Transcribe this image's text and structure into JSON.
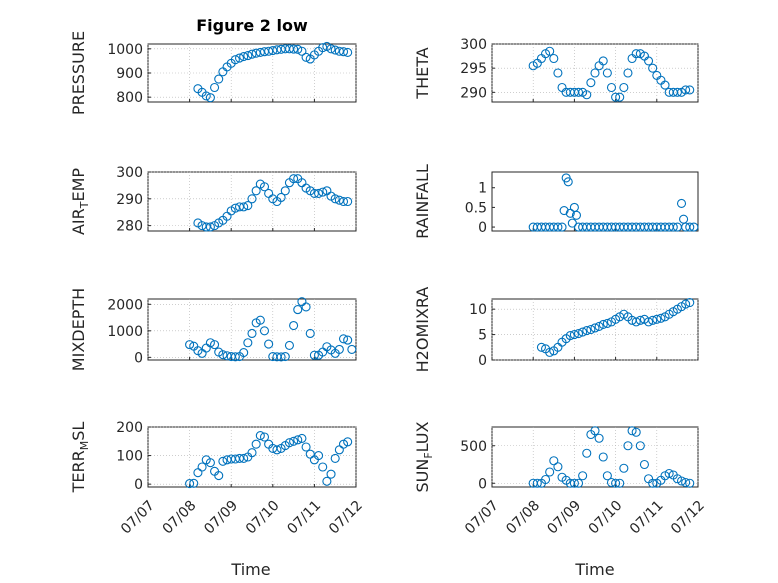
{
  "figure": {
    "title": "Figure 2 low",
    "xlabel_left": "Time",
    "xlabel_right": "Time",
    "x_tick_labels": [
      "07/07",
      "07/08",
      "07/09",
      "07/10",
      "07/11",
      "07/12"
    ],
    "series_color": "#0072bd"
  },
  "chart_data": [
    {
      "type": "scatter",
      "ylabel": "PRESSURE",
      "ylim": [
        780,
        1020
      ],
      "yticks": [
        800,
        900,
        1000
      ],
      "xlim": [
        "07/07",
        "07/12"
      ],
      "grid": true,
      "points": [
        [
          1.2,
          835
        ],
        [
          1.3,
          820
        ],
        [
          1.4,
          805
        ],
        [
          1.5,
          798
        ],
        [
          1.6,
          840
        ],
        [
          1.7,
          875
        ],
        [
          1.8,
          905
        ],
        [
          1.9,
          925
        ],
        [
          2.0,
          940
        ],
        [
          2.1,
          955
        ],
        [
          2.2,
          962
        ],
        [
          2.3,
          968
        ],
        [
          2.4,
          972
        ],
        [
          2.5,
          978
        ],
        [
          2.6,
          982
        ],
        [
          2.7,
          985
        ],
        [
          2.8,
          988
        ],
        [
          2.9,
          990
        ],
        [
          3.0,
          993
        ],
        [
          3.1,
          996
        ],
        [
          3.2,
          998
        ],
        [
          3.3,
          1000
        ],
        [
          3.4,
          1000
        ],
        [
          3.5,
          999
        ],
        [
          3.6,
          998
        ],
        [
          3.7,
          990
        ],
        [
          3.8,
          965
        ],
        [
          3.9,
          958
        ],
        [
          4.0,
          975
        ],
        [
          4.1,
          990
        ],
        [
          4.2,
          1005
        ],
        [
          4.3,
          1010
        ],
        [
          4.4,
          1000
        ],
        [
          4.5,
          995
        ],
        [
          4.6,
          990
        ],
        [
          4.7,
          988
        ],
        [
          4.8,
          985
        ]
      ]
    },
    {
      "type": "scatter",
      "ylabel": "THETA",
      "ylim": [
        288,
        300
      ],
      "yticks": [
        290,
        295,
        300
      ],
      "xlim": [
        "07/07",
        "07/12"
      ],
      "grid": true,
      "points": [
        [
          1.0,
          295.5
        ],
        [
          1.1,
          296
        ],
        [
          1.2,
          297
        ],
        [
          1.3,
          298
        ],
        [
          1.4,
          298.5
        ],
        [
          1.5,
          297
        ],
        [
          1.6,
          294
        ],
        [
          1.7,
          291
        ],
        [
          1.8,
          290
        ],
        [
          1.9,
          290
        ],
        [
          2.0,
          290
        ],
        [
          2.1,
          290
        ],
        [
          2.2,
          290
        ],
        [
          2.3,
          289.5
        ],
        [
          2.4,
          292
        ],
        [
          2.5,
          294
        ],
        [
          2.6,
          295.5
        ],
        [
          2.7,
          296.5
        ],
        [
          2.8,
          294
        ],
        [
          2.9,
          291
        ],
        [
          3.0,
          289
        ],
        [
          3.1,
          289
        ],
        [
          3.2,
          291
        ],
        [
          3.3,
          294
        ],
        [
          3.4,
          297
        ],
        [
          3.5,
          298
        ],
        [
          3.6,
          298
        ],
        [
          3.7,
          297.5
        ],
        [
          3.8,
          296.5
        ],
        [
          3.9,
          295
        ],
        [
          4.0,
          293.5
        ],
        [
          4.1,
          292.5
        ],
        [
          4.2,
          291.5
        ],
        [
          4.3,
          290
        ],
        [
          4.4,
          290
        ],
        [
          4.5,
          290
        ],
        [
          4.6,
          290
        ],
        [
          4.7,
          290.5
        ],
        [
          4.8,
          290.5
        ]
      ]
    },
    {
      "type": "scatter",
      "ylabel": "AIR",
      "ylabel_sub": "T",
      "ylabel_rest": "EMP",
      "ylim": [
        278,
        300
      ],
      "yticks": [
        280,
        290,
        300
      ],
      "xlim": [
        "07/07",
        "07/12"
      ],
      "grid": true,
      "points": [
        [
          1.2,
          281
        ],
        [
          1.3,
          280
        ],
        [
          1.4,
          279.5
        ],
        [
          1.5,
          279.5
        ],
        [
          1.6,
          280
        ],
        [
          1.7,
          281
        ],
        [
          1.8,
          282
        ],
        [
          1.9,
          283.5
        ],
        [
          2.0,
          285.5
        ],
        [
          2.1,
          286.5
        ],
        [
          2.2,
          287
        ],
        [
          2.3,
          287
        ],
        [
          2.4,
          287.5
        ],
        [
          2.5,
          290
        ],
        [
          2.6,
          293
        ],
        [
          2.7,
          295.5
        ],
        [
          2.8,
          294.5
        ],
        [
          2.9,
          292
        ],
        [
          3.0,
          290
        ],
        [
          3.1,
          289
        ],
        [
          3.2,
          290.5
        ],
        [
          3.3,
          293
        ],
        [
          3.4,
          296
        ],
        [
          3.5,
          297.5
        ],
        [
          3.6,
          297.5
        ],
        [
          3.7,
          296
        ],
        [
          3.8,
          294
        ],
        [
          3.9,
          293
        ],
        [
          4.0,
          292
        ],
        [
          4.1,
          292
        ],
        [
          4.2,
          292.5
        ],
        [
          4.3,
          293
        ],
        [
          4.4,
          291
        ],
        [
          4.5,
          290
        ],
        [
          4.6,
          289.5
        ],
        [
          4.7,
          289
        ],
        [
          4.8,
          289
        ]
      ]
    },
    {
      "type": "scatter",
      "ylabel": "RAINFALL",
      "ylim": [
        -0.1,
        1.4
      ],
      "yticks": [
        0,
        0.5,
        1
      ],
      "ytick_labels": [
        "0",
        "0.5",
        "1"
      ],
      "xlim": [
        "07/07",
        "07/12"
      ],
      "grid": false,
      "points": [
        [
          1.0,
          0
        ],
        [
          1.1,
          0
        ],
        [
          1.2,
          0
        ],
        [
          1.3,
          0
        ],
        [
          1.4,
          0
        ],
        [
          1.5,
          0
        ],
        [
          1.6,
          0
        ],
        [
          1.7,
          0
        ],
        [
          1.75,
          0.42
        ],
        [
          1.8,
          1.25
        ],
        [
          1.85,
          1.15
        ],
        [
          1.9,
          0.35
        ],
        [
          1.95,
          0.1
        ],
        [
          2.0,
          0.5
        ],
        [
          2.05,
          0.3
        ],
        [
          2.1,
          0
        ],
        [
          2.2,
          0
        ],
        [
          2.3,
          0
        ],
        [
          2.4,
          0
        ],
        [
          2.5,
          0
        ],
        [
          2.6,
          0
        ],
        [
          2.7,
          0
        ],
        [
          2.8,
          0
        ],
        [
          2.9,
          0
        ],
        [
          3.0,
          0
        ],
        [
          3.1,
          0
        ],
        [
          3.2,
          0
        ],
        [
          3.3,
          0
        ],
        [
          3.4,
          0
        ],
        [
          3.5,
          0
        ],
        [
          3.6,
          0
        ],
        [
          3.7,
          0
        ],
        [
          3.8,
          0
        ],
        [
          3.9,
          0
        ],
        [
          4.0,
          0
        ],
        [
          4.1,
          0
        ],
        [
          4.2,
          0
        ],
        [
          4.3,
          0
        ],
        [
          4.4,
          0
        ],
        [
          4.5,
          0
        ],
        [
          4.6,
          0.6
        ],
        [
          4.65,
          0.2
        ],
        [
          4.7,
          0
        ],
        [
          4.8,
          0
        ],
        [
          4.9,
          0
        ]
      ]
    },
    {
      "type": "scatter",
      "ylabel": "MIXDEPTH",
      "ylim": [
        -100,
        2200
      ],
      "yticks": [
        0,
        1000,
        2000
      ],
      "xlim": [
        "07/07",
        "07/12"
      ],
      "grid": true,
      "points": [
        [
          1.0,
          480
        ],
        [
          1.1,
          420
        ],
        [
          1.2,
          250
        ],
        [
          1.3,
          150
        ],
        [
          1.4,
          350
        ],
        [
          1.5,
          550
        ],
        [
          1.6,
          480
        ],
        [
          1.7,
          200
        ],
        [
          1.8,
          100
        ],
        [
          1.9,
          60
        ],
        [
          2.0,
          30
        ],
        [
          2.1,
          20
        ],
        [
          2.2,
          30
        ],
        [
          2.3,
          180
        ],
        [
          2.4,
          550
        ],
        [
          2.5,
          900
        ],
        [
          2.6,
          1300
        ],
        [
          2.7,
          1400
        ],
        [
          2.8,
          1000
        ],
        [
          2.9,
          500
        ],
        [
          3.0,
          30
        ],
        [
          3.1,
          20
        ],
        [
          3.2,
          15
        ],
        [
          3.3,
          30
        ],
        [
          3.4,
          450
        ],
        [
          3.5,
          1200
        ],
        [
          3.6,
          1800
        ],
        [
          3.7,
          2100
        ],
        [
          3.8,
          1900
        ],
        [
          3.9,
          900
        ],
        [
          4.0,
          80
        ],
        [
          4.1,
          80
        ],
        [
          4.2,
          200
        ],
        [
          4.3,
          400
        ],
        [
          4.4,
          280
        ],
        [
          4.5,
          150
        ],
        [
          4.6,
          300
        ],
        [
          4.7,
          700
        ],
        [
          4.8,
          650
        ],
        [
          4.9,
          300
        ]
      ]
    },
    {
      "type": "scatter",
      "ylabel": "H2OMIXRA",
      "ylim": [
        0,
        12
      ],
      "yticks": [
        0,
        5,
        10
      ],
      "xlim": [
        "07/07",
        "07/12"
      ],
      "grid": true,
      "points": [
        [
          1.2,
          2.5
        ],
        [
          1.3,
          2.2
        ],
        [
          1.4,
          1.5
        ],
        [
          1.5,
          1.8
        ],
        [
          1.6,
          2.5
        ],
        [
          1.7,
          3.5
        ],
        [
          1.8,
          4.2
        ],
        [
          1.9,
          4.8
        ],
        [
          2.0,
          5.0
        ],
        [
          2.1,
          5.2
        ],
        [
          2.2,
          5.5
        ],
        [
          2.3,
          5.8
        ],
        [
          2.4,
          6.0
        ],
        [
          2.5,
          6.3
        ],
        [
          2.6,
          6.6
        ],
        [
          2.7,
          7.0
        ],
        [
          2.8,
          7.2
        ],
        [
          2.9,
          7.5
        ],
        [
          3.0,
          8.0
        ],
        [
          3.1,
          8.5
        ],
        [
          3.2,
          9.0
        ],
        [
          3.3,
          8.5
        ],
        [
          3.4,
          7.8
        ],
        [
          3.5,
          7.5
        ],
        [
          3.6,
          7.8
        ],
        [
          3.7,
          8.0
        ],
        [
          3.8,
          7.5
        ],
        [
          3.9,
          7.8
        ],
        [
          4.0,
          8.0
        ],
        [
          4.1,
          8.2
        ],
        [
          4.2,
          8.5
        ],
        [
          4.3,
          9.0
        ],
        [
          4.4,
          9.5
        ],
        [
          4.5,
          10.0
        ],
        [
          4.6,
          10.5
        ],
        [
          4.7,
          11.0
        ],
        [
          4.8,
          11.3
        ]
      ]
    },
    {
      "type": "scatter",
      "ylabel": "TERR",
      "ylabel_sub": "M",
      "ylabel_rest": "SL",
      "ylim": [
        -10,
        200
      ],
      "yticks": [
        0,
        100,
        200
      ],
      "xlim": [
        "07/07",
        "07/12"
      ],
      "grid": true,
      "points": [
        [
          1.0,
          2
        ],
        [
          1.1,
          3
        ],
        [
          1.2,
          40
        ],
        [
          1.3,
          60
        ],
        [
          1.4,
          85
        ],
        [
          1.5,
          75
        ],
        [
          1.6,
          45
        ],
        [
          1.7,
          30
        ],
        [
          1.8,
          80
        ],
        [
          1.9,
          85
        ],
        [
          2.0,
          88
        ],
        [
          2.1,
          88
        ],
        [
          2.2,
          90
        ],
        [
          2.3,
          90
        ],
        [
          2.4,
          95
        ],
        [
          2.5,
          110
        ],
        [
          2.6,
          140
        ],
        [
          2.7,
          170
        ],
        [
          2.8,
          165
        ],
        [
          2.9,
          140
        ],
        [
          3.0,
          125
        ],
        [
          3.1,
          120
        ],
        [
          3.2,
          125
        ],
        [
          3.3,
          135
        ],
        [
          3.4,
          145
        ],
        [
          3.5,
          150
        ],
        [
          3.6,
          155
        ],
        [
          3.7,
          160
        ],
        [
          3.8,
          130
        ],
        [
          3.9,
          105
        ],
        [
          4.0,
          85
        ],
        [
          4.1,
          100
        ],
        [
          4.2,
          60
        ],
        [
          4.3,
          10
        ],
        [
          4.4,
          35
        ],
        [
          4.5,
          90
        ],
        [
          4.6,
          120
        ],
        [
          4.7,
          140
        ],
        [
          4.8,
          148
        ]
      ]
    },
    {
      "type": "scatter",
      "ylabel": "SUN",
      "ylabel_sub": "F",
      "ylabel_rest": "LUX",
      "ylim": [
        -50,
        750
      ],
      "yticks": [
        0,
        500
      ],
      "xlim": [
        "07/07",
        "07/12"
      ],
      "grid": true,
      "points": [
        [
          1.0,
          0
        ],
        [
          1.1,
          0
        ],
        [
          1.2,
          0
        ],
        [
          1.3,
          50
        ],
        [
          1.4,
          150
        ],
        [
          1.5,
          300
        ],
        [
          1.6,
          220
        ],
        [
          1.7,
          80
        ],
        [
          1.8,
          40
        ],
        [
          1.9,
          0
        ],
        [
          2.0,
          0
        ],
        [
          2.1,
          0
        ],
        [
          2.2,
          100
        ],
        [
          2.3,
          400
        ],
        [
          2.4,
          650
        ],
        [
          2.5,
          700
        ],
        [
          2.6,
          600
        ],
        [
          2.7,
          350
        ],
        [
          2.8,
          100
        ],
        [
          2.9,
          10
        ],
        [
          3.0,
          0
        ],
        [
          3.1,
          0
        ],
        [
          3.2,
          200
        ],
        [
          3.3,
          500
        ],
        [
          3.4,
          700
        ],
        [
          3.5,
          680
        ],
        [
          3.6,
          500
        ],
        [
          3.7,
          250
        ],
        [
          3.8,
          60
        ],
        [
          3.9,
          0
        ],
        [
          4.0,
          0
        ],
        [
          4.1,
          40
        ],
        [
          4.2,
          100
        ],
        [
          4.3,
          130
        ],
        [
          4.4,
          110
        ],
        [
          4.5,
          60
        ],
        [
          4.6,
          30
        ],
        [
          4.7,
          10
        ],
        [
          4.8,
          0
        ]
      ]
    }
  ]
}
